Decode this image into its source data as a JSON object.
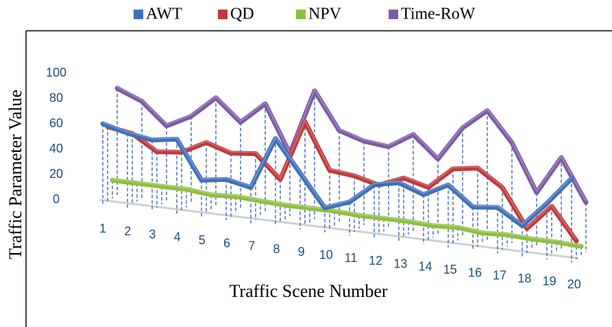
{
  "chart_data": {
    "type": "line3d",
    "x_label": "Traffic Scene  Number",
    "y_label": "Traffic Parameter Value",
    "categories": [
      "1",
      "2",
      "3",
      "4",
      "5",
      "6",
      "7",
      "8",
      "9",
      "10",
      "11",
      "12",
      "13",
      "14",
      "15",
      "16",
      "17",
      "18",
      "19",
      "20"
    ],
    "ylim": [
      0,
      100
    ],
    "yticks": [
      0,
      20,
      40,
      60,
      80,
      100
    ],
    "series": [
      {
        "name": "AWT",
        "color": "#3f6fb8",
        "values": [
          60,
          55,
          52,
          55,
          25,
          28,
          24,
          65,
          40,
          15,
          22,
          38,
          42,
          35,
          45,
          30,
          32,
          20,
          40,
          62
        ]
      },
      {
        "name": "QD",
        "color": "#c0393b",
        "values": [
          55,
          52,
          40,
          42,
          52,
          46,
          48,
          30,
          78,
          42,
          40,
          35,
          43,
          38,
          55,
          58,
          45,
          15,
          35,
          10
        ]
      },
      {
        "name": "NPV",
        "color": "#8fbf3f",
        "values": [
          10,
          10,
          10,
          10,
          8,
          9,
          8,
          7,
          7,
          7,
          6,
          6,
          6,
          5,
          6,
          4,
          5,
          4,
          4,
          3
        ]
      },
      {
        "name": "Time-RoW",
        "color": "#7c5aa6",
        "values": [
          80,
          72,
          55,
          65,
          82,
          65,
          82,
          45,
          97,
          68,
          62,
          60,
          72,
          55,
          82,
          98,
          75,
          38,
          68,
          35
        ]
      }
    ]
  }
}
